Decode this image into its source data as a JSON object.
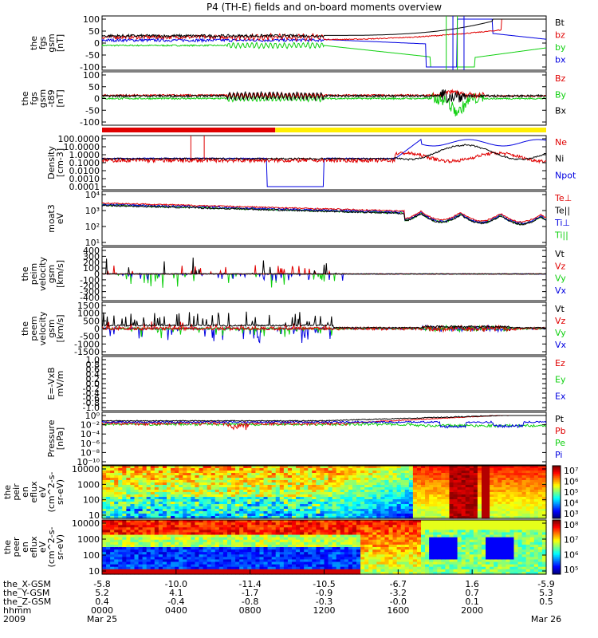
{
  "title": "P4 (TH-E) fields and on-board moments overview",
  "colors": {
    "black": "#000000",
    "red": "#e00000",
    "green": "#10d010",
    "blue": "#0000e0",
    "yellow": "#ffee00"
  },
  "chart_data": [
    {
      "type": "line",
      "id": "fgs",
      "ylabel": [
        "the",
        "fgs",
        "gsm",
        "[nT]"
      ],
      "yticks": [
        "100",
        "50",
        "0",
        "-50",
        "-100"
      ],
      "ylim": [
        -100,
        100
      ],
      "legend": [
        {
          "name": "Bt",
          "color": "#000000"
        },
        {
          "name": "bz",
          "color": "#e00000"
        },
        {
          "name": "by",
          "color": "#10d010"
        },
        {
          "name": "bx",
          "color": "#0000e0"
        }
      ]
    },
    {
      "type": "line",
      "id": "fgs_dsl",
      "ylabel": [
        "the",
        "fgs",
        "gsm",
        "-t89",
        "[nT]"
      ],
      "yticks": [
        "100",
        "50",
        "0",
        "-50",
        "-100"
      ],
      "ylim": [
        -120,
        100
      ],
      "legend": [
        {
          "name": "Bz",
          "color": "#e00000"
        },
        {
          "name": "By",
          "color": "#10d010"
        },
        {
          "name": "Bx",
          "color": "#000000"
        }
      ]
    },
    {
      "type": "bar",
      "id": "mode",
      "segments": [
        {
          "from": 0,
          "to": 0.39,
          "color": "#e00000"
        },
        {
          "from": 0.39,
          "to": 1.0,
          "color": "#ffee00"
        }
      ]
    },
    {
      "type": "line",
      "id": "density",
      "ylabel": [
        "Density",
        "[cm-3]"
      ],
      "yticks": [
        "100.0000",
        "10.0000",
        "1.0000",
        "0.1000",
        "0.0100",
        "0.0010",
        "0.0001"
      ],
      "log": true,
      "legend": [
        {
          "name": "Ne",
          "color": "#e00000"
        },
        {
          "name": "Ni",
          "color": "#000000"
        },
        {
          "name": "Npot",
          "color": "#0000e0"
        }
      ]
    },
    {
      "type": "line",
      "id": "temp",
      "ylabel": [
        "moat3",
        "eV"
      ],
      "yticks": [
        "10⁴",
        "10³",
        "10²",
        "10¹"
      ],
      "log": true,
      "legend": [
        {
          "name": "Te⊥",
          "color": "#e00000"
        },
        {
          "name": "Te||",
          "color": "#000000"
        },
        {
          "name": "Ti⊥",
          "color": "#0000e0"
        },
        {
          "name": "Ti||",
          "color": "#10d010"
        }
      ]
    },
    {
      "type": "line",
      "id": "peim_v",
      "ylabel": [
        "the",
        "peim",
        "velocity",
        "gsm",
        "[km/s]"
      ],
      "yticks": [
        "400",
        "300",
        "200",
        "100",
        "0",
        "-100",
        "-200",
        "-300",
        "-400"
      ],
      "ylim": [
        -400,
        400
      ],
      "legend": [
        {
          "name": "Vt",
          "color": "#000000"
        },
        {
          "name": "Vz",
          "color": "#e00000"
        },
        {
          "name": "Vy",
          "color": "#10d010"
        },
        {
          "name": "Vx",
          "color": "#0000e0"
        }
      ]
    },
    {
      "type": "line",
      "id": "peem_v",
      "ylabel": [
        "the",
        "peem",
        "velocity",
        "gsm",
        "[km/s]"
      ],
      "yticks": [
        "1500",
        "1000",
        "500",
        "0",
        "-500",
        "-1000",
        "-1500"
      ],
      "ylim": [
        -1500,
        1500
      ],
      "legend": [
        {
          "name": "Vt",
          "color": "#000000"
        },
        {
          "name": "Vz",
          "color": "#e00000"
        },
        {
          "name": "Vy",
          "color": "#10d010"
        },
        {
          "name": "Vx",
          "color": "#0000e0"
        }
      ]
    },
    {
      "type": "line",
      "id": "efield",
      "ylabel": [
        "E=-VxB",
        "mV/m"
      ],
      "yticks": [
        "1.0",
        "0.8",
        "0.6",
        "0.4",
        "0.2",
        "0.0",
        "-0.2",
        "-0.4",
        "-0.6",
        "-0.8",
        "-1.0"
      ],
      "ylim": [
        -1,
        1
      ],
      "legend": [
        {
          "name": "Ez",
          "color": "#e00000"
        },
        {
          "name": "Ey",
          "color": "#10d010"
        },
        {
          "name": "Ex",
          "color": "#0000e0"
        }
      ]
    },
    {
      "type": "line",
      "id": "pressure",
      "ylabel": [
        "Pressure",
        "[nPa]"
      ],
      "yticks": [
        "10⁰",
        "10⁻²",
        "10⁻⁴",
        "10⁻⁶",
        "10⁻⁸",
        "10⁻¹⁰"
      ],
      "log": true,
      "legend": [
        {
          "name": "Pt",
          "color": "#000000"
        },
        {
          "name": "Pb",
          "color": "#e00000"
        },
        {
          "name": "Pe",
          "color": "#10d010"
        },
        {
          "name": "Pi",
          "color": "#0000e0"
        }
      ]
    },
    {
      "type": "heatmap",
      "id": "peir_spec",
      "ylabel": [
        "the",
        "peir",
        "en",
        "eflux",
        "eV",
        "(cm^2-s-",
        "sr-eV)"
      ],
      "yticks": [
        "10000",
        "1000",
        "100",
        "10"
      ],
      "log": true,
      "cbar_ticks": [
        "10⁷",
        "10⁶",
        "10⁵",
        "10⁴",
        "10³"
      ]
    },
    {
      "type": "heatmap",
      "id": "peer_spec",
      "ylabel": [
        "the",
        "peer",
        "en",
        "eflux",
        "eV",
        "(cm^2-s-",
        "sr-eV)"
      ],
      "yticks": [
        "10000",
        "1000",
        "100",
        "10"
      ],
      "log": true,
      "cbar_ticks": [
        "10⁸",
        "10⁷",
        "10⁶",
        "10⁵"
      ]
    }
  ],
  "xaxis": {
    "rows": [
      {
        "label": "the_X-GSM",
        "values": [
          "-5.8",
          "-10.0",
          "-11.4",
          "-10.5",
          "-6.7",
          "1.6",
          "-5.9"
        ]
      },
      {
        "label": "the_Y-GSM",
        "values": [
          "5.2",
          "4.1",
          "-1.7",
          "-0.9",
          "-3.2",
          "0.7",
          "5.3"
        ]
      },
      {
        "label": "the_Z-GSM",
        "values": [
          "0.4",
          "-0.4",
          "-0.8",
          "-0.3",
          "-0.0",
          "0.1",
          "0.5"
        ]
      },
      {
        "label": "hhmm",
        "values": [
          "0000",
          "0400",
          "0800",
          "1200",
          "1600",
          "2000",
          ""
        ]
      },
      {
        "label": "2009",
        "values": [
          "Mar 25",
          "",
          "",
          "",
          "",
          "",
          "Mar 26"
        ]
      }
    ]
  }
}
